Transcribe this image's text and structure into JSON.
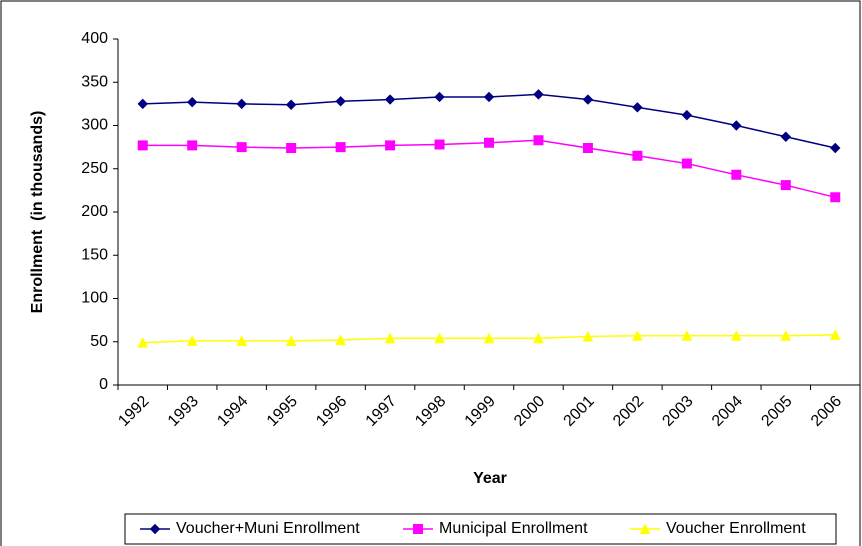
{
  "chart_data": {
    "type": "line",
    "x_label": "Year",
    "y_label": "Enrollment  (in thousands)",
    "categories": [
      "1992",
      "1993",
      "1994",
      "1995",
      "1996",
      "1997",
      "1998",
      "1999",
      "2000",
      "2001",
      "2002",
      "2003",
      "2004",
      "2005",
      "2006"
    ],
    "series": [
      {
        "name": "Voucher+Muni Enrollment",
        "color": "#000080",
        "marker": "diamond",
        "values": [
          325,
          327,
          325,
          324,
          328,
          330,
          333,
          333,
          336,
          330,
          321,
          312,
          300,
          287,
          274
        ]
      },
      {
        "name": "Municipal Enrollment",
        "color": "#ff00ff",
        "marker": "square",
        "values": [
          277,
          277,
          275,
          274,
          275,
          277,
          278,
          280,
          283,
          274,
          265,
          256,
          243,
          231,
          217
        ]
      },
      {
        "name": "Voucher Enrollment",
        "color": "#ffff00",
        "marker": "triangle",
        "values": [
          49,
          51,
          51,
          51,
          52,
          54,
          54,
          54,
          54,
          56,
          57,
          57,
          57,
          57,
          58
        ]
      }
    ],
    "ylim": [
      0,
      400
    ],
    "yticks": [
      0,
      50,
      100,
      150,
      200,
      250,
      300,
      350,
      400
    ],
    "grid": false,
    "legend": "bottom"
  }
}
